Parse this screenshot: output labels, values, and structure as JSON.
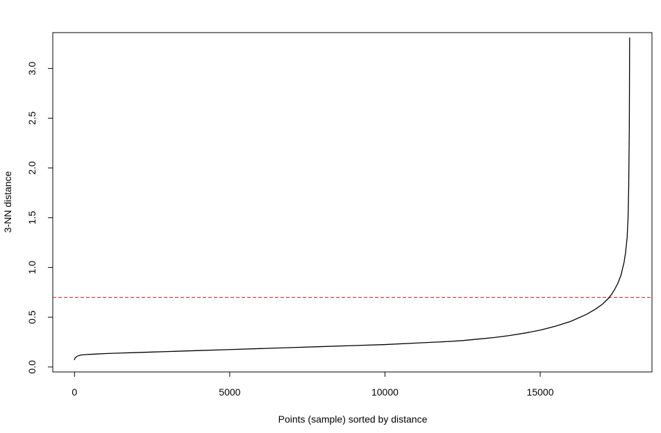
{
  "chart_data": {
    "type": "line",
    "xlabel": "Points (sample) sorted by distance",
    "ylabel": "3-NN distance",
    "xlim": [
      -700,
      18600
    ],
    "ylim": [
      -0.05,
      3.36
    ],
    "x_ticks": [
      0,
      5000,
      10000,
      15000
    ],
    "y_ticks": [
      0.0,
      0.5,
      1.0,
      1.5,
      2.0,
      2.5,
      3.0
    ],
    "x_tick_labels": [
      "0",
      "5000",
      "10000",
      "15000"
    ],
    "y_tick_labels": [
      "0.0",
      "0.5",
      "1.0",
      "1.5",
      "2.0",
      "2.5",
      "3.0"
    ],
    "grid": false,
    "series": [
      {
        "color": "#000000",
        "x": [
          0,
          5,
          20,
          50,
          100,
          200,
          400,
          700,
          1000,
          1500,
          2000,
          2500,
          3000,
          4000,
          5000,
          6000,
          7000,
          8000,
          9000,
          10000,
          11000,
          12000,
          12500,
          13000,
          13500,
          14000,
          14500,
          15000,
          15500,
          16000,
          16500,
          16800,
          17000,
          17200,
          17300,
          17400,
          17500,
          17600,
          17700,
          17750,
          17800,
          17830,
          17850,
          17870,
          17880
        ],
        "y": [
          0.07,
          0.08,
          0.09,
          0.1,
          0.11,
          0.12,
          0.125,
          0.13,
          0.135,
          0.14,
          0.145,
          0.15,
          0.155,
          0.165,
          0.175,
          0.185,
          0.195,
          0.205,
          0.215,
          0.225,
          0.24,
          0.255,
          0.265,
          0.28,
          0.295,
          0.315,
          0.34,
          0.37,
          0.41,
          0.46,
          0.53,
          0.585,
          0.63,
          0.69,
          0.73,
          0.78,
          0.84,
          0.92,
          1.05,
          1.15,
          1.3,
          1.5,
          1.8,
          2.4,
          3.31
        ]
      }
    ],
    "reference_line": {
      "y": 0.7,
      "color": "#cc2222",
      "style": "dashed"
    }
  }
}
